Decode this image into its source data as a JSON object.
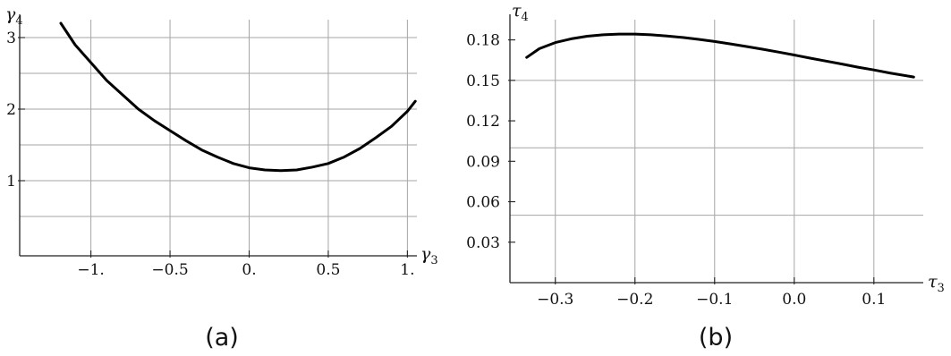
{
  "chart_data": [
    {
      "type": "line",
      "panel": "(a)",
      "xlabel": "γ",
      "xlabel_sub": "3",
      "ylabel": "γ",
      "ylabel_sub": "4",
      "xlim": [
        -1.45,
        1.06
      ],
      "ylim": [
        -0.05,
        3.25
      ],
      "x_ticks": [
        -1.0,
        -0.5,
        0.0,
        0.5,
        1.0
      ],
      "x_tick_labels": [
        "−1.",
        "−0.5",
        "0.",
        "0.5",
        "1."
      ],
      "y_ticks": [
        1,
        2,
        3
      ],
      "y_tick_labels": [
        "1",
        "2",
        "3"
      ],
      "x_grid": [
        -1.0,
        -0.5,
        0.0,
        0.5,
        1.0
      ],
      "y_grid": [
        0.5,
        1.0,
        1.5,
        2.0,
        2.5,
        3.0
      ],
      "grid": true,
      "series": [
        {
          "x": [
            -1.19,
            -1.1,
            -1.0,
            -0.9,
            -0.8,
            -0.7,
            -0.6,
            -0.5,
            -0.4,
            -0.3,
            -0.2,
            -0.1,
            0.0,
            0.1,
            0.2,
            0.3,
            0.4,
            0.5,
            0.6,
            0.7,
            0.8,
            0.9,
            1.0,
            1.05
          ],
          "y": [
            3.2,
            2.9,
            2.65,
            2.4,
            2.2,
            2.0,
            1.84,
            1.7,
            1.56,
            1.43,
            1.33,
            1.24,
            1.18,
            1.15,
            1.14,
            1.15,
            1.19,
            1.24,
            1.33,
            1.45,
            1.6,
            1.76,
            1.97,
            2.11
          ]
        }
      ]
    },
    {
      "type": "line",
      "panel": "(b)",
      "xlabel": "τ",
      "xlabel_sub": "3",
      "ylabel": "τ",
      "ylabel_sub": "4",
      "xlim": [
        -0.357,
        0.162
      ],
      "ylim": [
        0.0,
        0.195
      ],
      "x_ticks": [
        -0.3,
        -0.2,
        -0.1,
        0.0,
        0.1
      ],
      "x_tick_labels": [
        "−0.3",
        "−0.2",
        "−0.1",
        "0.0",
        "0.1"
      ],
      "y_ticks": [
        0.03,
        0.06,
        0.09,
        0.12,
        0.15,
        0.18
      ],
      "y_tick_labels": [
        "0.03",
        "0.06",
        "0.09",
        "0.12",
        "0.15",
        "0.18"
      ],
      "x_grid": [
        -0.3,
        -0.2,
        -0.1,
        0.0,
        0.1
      ],
      "y_grid": [
        0.05,
        0.1,
        0.15
      ],
      "grid": true,
      "series": [
        {
          "x": [
            -0.336,
            -0.32,
            -0.3,
            -0.28,
            -0.26,
            -0.24,
            -0.22,
            -0.2,
            -0.18,
            -0.16,
            -0.14,
            -0.12,
            -0.1,
            -0.08,
            -0.06,
            -0.04,
            -0.02,
            0.0,
            0.02,
            0.04,
            0.06,
            0.08,
            0.1,
            0.12,
            0.15
          ],
          "y": [
            0.167,
            0.1735,
            0.178,
            0.1808,
            0.1827,
            0.1838,
            0.1843,
            0.1843,
            0.1838,
            0.1829,
            0.1818,
            0.1804,
            0.1788,
            0.177,
            0.1751,
            0.1731,
            0.171,
            0.1688,
            0.1665,
            0.1643,
            0.1621,
            0.1598,
            0.1577,
            0.1555,
            0.1525
          ]
        }
      ]
    }
  ],
  "captions": [
    "(a)",
    "(b)"
  ]
}
